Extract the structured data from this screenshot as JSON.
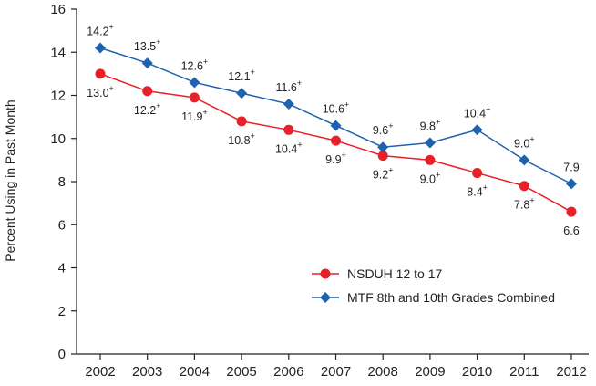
{
  "chart_data": {
    "type": "line",
    "title": "",
    "xlabel": "",
    "ylabel": "Percent Using in Past Month",
    "ylim": [
      0,
      16
    ],
    "yticks": [
      0,
      2,
      4,
      6,
      8,
      10,
      12,
      14,
      16
    ],
    "x": [
      "2002",
      "2003",
      "2004",
      "2005",
      "2006",
      "2007",
      "2008",
      "2009",
      "2010",
      "2011",
      "2012"
    ],
    "grid": false,
    "legend_position": "bottom-right",
    "series": [
      {
        "name": "NSDUH 12 to 17",
        "marker": "circle",
        "color": "#e8202a",
        "values": [
          13.0,
          12.2,
          11.9,
          10.8,
          10.4,
          9.9,
          9.2,
          9.0,
          8.4,
          7.8,
          6.6
        ],
        "labels": [
          "13.0",
          "12.2",
          "11.9",
          "10.8",
          "10.4",
          "9.9",
          "9.2",
          "9.0",
          "8.4",
          "7.8",
          "6.6"
        ],
        "significance_marker": "+",
        "significant": [
          true,
          true,
          true,
          true,
          true,
          true,
          true,
          true,
          true,
          true,
          false
        ]
      },
      {
        "name": "MTF 8th and 10th Grades Combined",
        "marker": "diamond",
        "color": "#1f62ad",
        "values": [
          14.2,
          13.5,
          12.6,
          12.1,
          11.6,
          10.6,
          9.6,
          9.8,
          10.4,
          9.0,
          7.9
        ],
        "labels": [
          "14.2",
          "13.5",
          "12.6",
          "12.1",
          "11.6",
          "10.6",
          "9.6",
          "9.8",
          "10.4",
          "9.0",
          "7.9"
        ],
        "significance_marker": "+",
        "significant": [
          true,
          true,
          true,
          true,
          true,
          true,
          true,
          true,
          true,
          true,
          false
        ]
      }
    ]
  }
}
